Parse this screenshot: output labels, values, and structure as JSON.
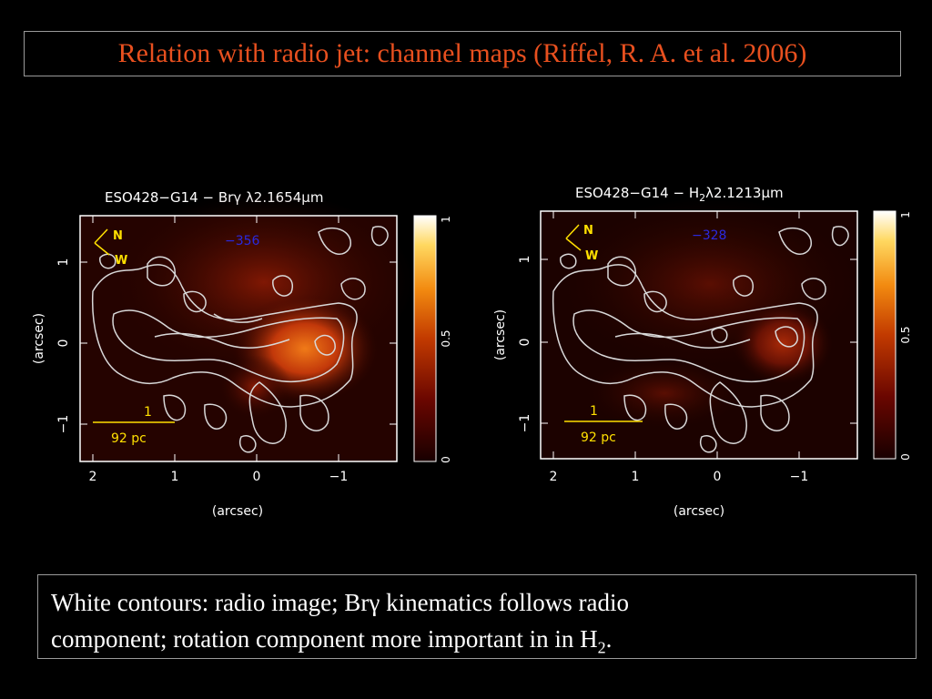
{
  "slide": {
    "title": "Relation with radio jet: channel maps (Riffel, R. A. et al. 2006)",
    "caption_parts": [
      "White contours: radio image; Brγ kinematics follows radio",
      "component; rotation component more important in in H",
      "2",
      "."
    ]
  },
  "panels": [
    {
      "title_pre": "ESO428−G14 − Brγ λ2.1654",
      "title_unit": "μm",
      "velocity": "−356",
      "velocity_color": "#2a2ae0",
      "compass": {
        "n": "N",
        "w": "W"
      },
      "scale": {
        "top": "1",
        "bottom": "92 pc"
      },
      "x_ticks": [
        "2",
        "1",
        "0",
        "−1"
      ],
      "y_ticks": [
        "1",
        "0",
        "−1"
      ],
      "xlabel": "(arcsec)",
      "ylabel": "(arcsec)",
      "colorbar_ticks": [
        "1",
        "0.5",
        "0"
      ]
    },
    {
      "title_pre": "ESO428−G14 − H",
      "title_sub": "2",
      "title_post": "λ2.1213",
      "title_unit": "μm",
      "velocity": "−328",
      "velocity_color": "#2a2ae0",
      "compass": {
        "n": "N",
        "w": "W"
      },
      "scale": {
        "top": "1",
        "bottom": "92 pc"
      },
      "x_ticks": [
        "2",
        "1",
        "0",
        "−1"
      ],
      "y_ticks": [
        "1",
        "0",
        "−1"
      ],
      "xlabel": "(arcsec)",
      "ylabel": "(arcsec)",
      "colorbar_ticks": [
        "1",
        "0.5",
        "0"
      ]
    }
  ],
  "colors": {
    "title": "#e8501f",
    "annotation_yellow": "#ffe000",
    "contour": "#d8d8d8"
  }
}
